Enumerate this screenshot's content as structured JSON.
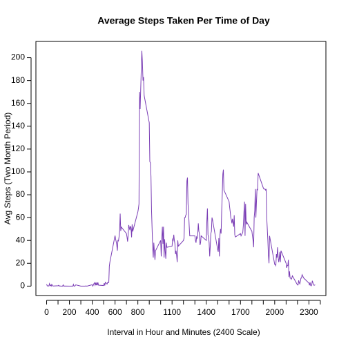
{
  "chart_data": {
    "type": "line",
    "title": "Average Steps Taken Per Time of Day",
    "xlabel": "Interval in Hour and Minutes (2400 Scale)",
    "ylabel": "Avg Steps (Two Month Period)",
    "color": "#7a3db5",
    "xlim": [
      -94,
      2449
    ],
    "ylim": [
      -8.24,
      214.24
    ],
    "xticks": [
      0,
      200,
      400,
      600,
      800,
      1100,
      1400,
      1700,
      2000,
      2300
    ],
    "xminor_ticks": [
      100,
      300,
      500,
      700,
      900,
      1000,
      1200,
      1300,
      1500,
      1600,
      1800,
      1900,
      2100,
      2200,
      2400
    ],
    "yticks": [
      0,
      20,
      40,
      60,
      80,
      100,
      120,
      140,
      160,
      180,
      200
    ],
    "series": [
      {
        "name": "Avg Steps",
        "x": [
          0,
          5,
          10,
          15,
          20,
          25,
          30,
          35,
          40,
          45,
          50,
          55,
          100,
          105,
          110,
          115,
          120,
          125,
          130,
          135,
          140,
          145,
          150,
          155,
          200,
          205,
          210,
          215,
          220,
          225,
          230,
          235,
          240,
          245,
          250,
          255,
          300,
          305,
          310,
          315,
          320,
          325,
          330,
          335,
          340,
          345,
          350,
          355,
          400,
          405,
          410,
          415,
          420,
          425,
          430,
          435,
          440,
          445,
          450,
          455,
          500,
          505,
          510,
          515,
          520,
          525,
          530,
          535,
          540,
          545,
          550,
          555,
          600,
          605,
          610,
          615,
          620,
          625,
          630,
          635,
          640,
          645,
          650,
          655,
          700,
          705,
          710,
          715,
          720,
          725,
          730,
          735,
          740,
          745,
          750,
          755,
          800,
          805,
          810,
          815,
          820,
          825,
          830,
          835,
          840,
          845,
          850,
          855,
          900,
          905,
          910,
          915,
          920,
          925,
          930,
          935,
          940,
          945,
          950,
          955,
          1000,
          1005,
          1010,
          1015,
          1020,
          1025,
          1030,
          1035,
          1040,
          1045,
          1050,
          1055,
          1100,
          1105,
          1110,
          1115,
          1120,
          1125,
          1130,
          1135,
          1140,
          1145,
          1150,
          1155,
          1200,
          1205,
          1210,
          1215,
          1220,
          1225,
          1230,
          1235,
          1240,
          1245,
          1250,
          1255,
          1300,
          1305,
          1310,
          1315,
          1320,
          1325,
          1330,
          1335,
          1340,
          1345,
          1350,
          1355,
          1400,
          1405,
          1410,
          1415,
          1420,
          1425,
          1430,
          1435,
          1440,
          1445,
          1450,
          1455,
          1500,
          1505,
          1510,
          1515,
          1520,
          1525,
          1530,
          1535,
          1540,
          1545,
          1550,
          1555,
          1600,
          1605,
          1610,
          1615,
          1620,
          1625,
          1630,
          1635,
          1640,
          1645,
          1650,
          1655,
          1700,
          1705,
          1710,
          1715,
          1720,
          1725,
          1730,
          1735,
          1740,
          1745,
          1750,
          1755,
          1800,
          1805,
          1810,
          1815,
          1820,
          1825,
          1830,
          1835,
          1840,
          1845,
          1850,
          1855,
          1900,
          1905,
          1910,
          1915,
          1920,
          1925,
          1930,
          1935,
          1940,
          1945,
          1950,
          1955,
          2000,
          2005,
          2010,
          2015,
          2020,
          2025,
          2030,
          2035,
          2040,
          2045,
          2050,
          2055,
          2100,
          2105,
          2110,
          2115,
          2120,
          2125,
          2130,
          2135,
          2140,
          2145,
          2150,
          2155,
          2200,
          2205,
          2210,
          2215,
          2220,
          2225,
          2230,
          2235,
          2240,
          2245,
          2250,
          2255,
          2300,
          2305,
          2310,
          2315,
          2320,
          2325,
          2330,
          2335,
          2340,
          2345,
          2350,
          2355
        ],
        "values": [
          1.7,
          0.3,
          0.1,
          0.2,
          0.1,
          2.1,
          0.5,
          0.9,
          0,
          1.5,
          0.8,
          0.1,
          0.3,
          0.7,
          0,
          0.2,
          0.1,
          0,
          0,
          0,
          0,
          1.1,
          0,
          0.1,
          0,
          0,
          0,
          0,
          0,
          0,
          0,
          1.5,
          0,
          0,
          0.3,
          1.1,
          0,
          0,
          0,
          0,
          0,
          0,
          0,
          0,
          0,
          0.2,
          0,
          0,
          1.2,
          0,
          1,
          2.2,
          3,
          0.8,
          2.5,
          0.8,
          3.3,
          0.7,
          3.2,
          0.8,
          0.5,
          2.6,
          0.5,
          3.3,
          2.9,
          2.2,
          1.8,
          3.2,
          3,
          3.1,
          17.5,
          21.2,
          44.2,
          41,
          39,
          36,
          31,
          40,
          39.6,
          43,
          48.7,
          63.5,
          48.3,
          51.7,
          46,
          43,
          39,
          44.8,
          53.5,
          51.2,
          49,
          52.6,
          51,
          42.7,
          54.1,
          47.8,
          65,
          68,
          72,
          170,
          155,
          172,
          190,
          206,
          196,
          180,
          183,
          167,
          143,
          109,
          108,
          96,
          66,
          50,
          34,
          25,
          38,
          30,
          23,
          31,
          40,
          26,
          42,
          52,
          37,
          52,
          25,
          41,
          31,
          24,
          38,
          34,
          35,
          41,
          40,
          45,
          40,
          37,
          28,
          31,
          27,
          21,
          40,
          35,
          40,
          42,
          60,
          60,
          62,
          63,
          92,
          95,
          72,
          64,
          53,
          44,
          44,
          40,
          38,
          43,
          42,
          45,
          55,
          48,
          46,
          36,
          38,
          44,
          40,
          57,
          68,
          45,
          43,
          38,
          26,
          35,
          46,
          48,
          60,
          58,
          32,
          30,
          42,
          26,
          45,
          50,
          46,
          65,
          80,
          98,
          102,
          84,
          74,
          69,
          65,
          60,
          58,
          55,
          59,
          56,
          52,
          62,
          45,
          43,
          46,
          44,
          45,
          46,
          47,
          53,
          64,
          74,
          44,
          72,
          54,
          56,
          48,
          44,
          40,
          34,
          60,
          66,
          85,
          60,
          73,
          85,
          84,
          99,
          86,
          85,
          85,
          85,
          84,
          85,
          60,
          50,
          40,
          27,
          20,
          44,
          19,
          19,
          18,
          28,
          25,
          34,
          26,
          21,
          24,
          30,
          21,
          31,
          20,
          16,
          18,
          18,
          23,
          8,
          13,
          7,
          7,
          6,
          7,
          9,
          1,
          1,
          5,
          3,
          2,
          4,
          7,
          7,
          10,
          9,
          8,
          7,
          2.6,
          0.7,
          3.3,
          0.7,
          0.2,
          1.3,
          4.7,
          3,
          1.2,
          0.7,
          0.9,
          1.1
        ]
      }
    ]
  }
}
